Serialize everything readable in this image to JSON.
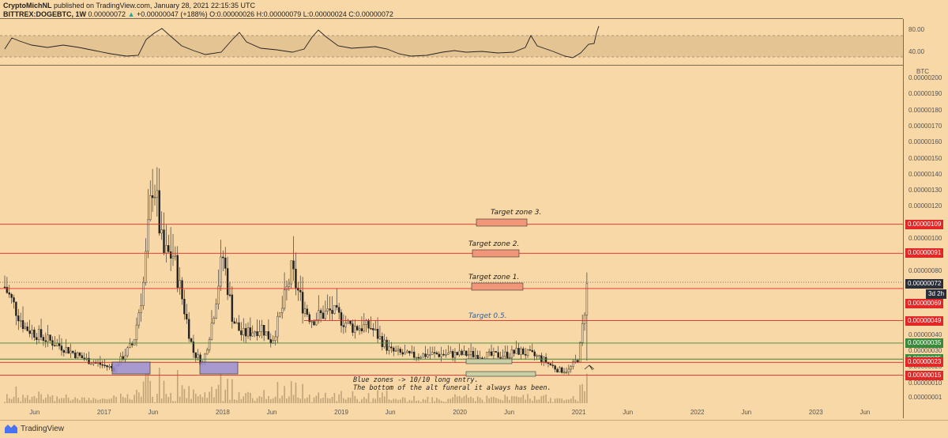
{
  "header": {
    "line1_author": "CryptoMichNL",
    "line1_rest": "published on TradingView.com, January 28, 2021 22:15:35 UTC",
    "line2_symbol": "BITTREX:DOGEBTC, 1W",
    "line2_close": "0.00000072",
    "line2_change": "+0.00000047 (+188%)",
    "line2_ohlc": "O:0.00000026 H:0.00000079 L:0.00000024 C:0.00000072"
  },
  "rsi_panel": {
    "ticks": [
      "80.00",
      "40.00"
    ]
  },
  "price_axis": {
    "unit": "BTC",
    "ticks": [
      "0.00000200",
      "0.00000190",
      "0.00000180",
      "0.00000170",
      "0.00000160",
      "0.00000150",
      "0.00000140",
      "0.00000130",
      "0.00000120",
      "0.00000110",
      "0.00000100",
      "0.00000090",
      "0.00000080",
      "0.00000070",
      "0.00000060",
      "0.00000050",
      "0.00000040",
      "0.00000030",
      "0.00000020",
      "0.00000010",
      "0.00000001"
    ]
  },
  "time_axis": {
    "ticks": [
      "Jun",
      "2017",
      "Jun",
      "2018",
      "Jun",
      "2019",
      "Jun",
      "2020",
      "Jun",
      "2021",
      "Jun",
      "2022",
      "Jun",
      "2023",
      "Jun"
    ]
  },
  "price_labels": [
    {
      "text": "0.00000109",
      "color": "#e32626"
    },
    {
      "text": "0.00000091",
      "color": "#e32626"
    },
    {
      "text": "0.00000072",
      "color": "#2a2e39"
    },
    {
      "text": "3d 2h",
      "color": "#2a2e39"
    },
    {
      "text": "0.00000069",
      "color": "#e32626"
    },
    {
      "text": "0.00000049",
      "color": "#e32626"
    },
    {
      "text": "0.00000035",
      "color": "#3b8a3b"
    },
    {
      "text": "0.00000025",
      "color": "#3b8a3b"
    },
    {
      "text": "0.00000023",
      "color": "#e32626"
    },
    {
      "text": "0.00000015",
      "color": "#e32626"
    }
  ],
  "annotations": {
    "target3": "Target zone 3.",
    "target2": "Target zone 2.",
    "target1": "Target zone 1.",
    "target05": "Target 0.5.",
    "note1": "Blue zones -> 10/10 long entry.",
    "note2": "The bottom of the alt funeral it always has been."
  },
  "footer": {
    "brand": "TradingView"
  },
  "chart_data": {
    "type": "candlestick",
    "symbol": "BITTREX:DOGEBTC",
    "interval": "1W",
    "y_unit": "BTC",
    "ylim": [
      1e-08,
      2e-06
    ],
    "x_range": [
      "2016-03",
      "2023-08"
    ],
    "last": {
      "open": 2.6e-07,
      "high": 7.9e-07,
      "low": 2.4e-07,
      "close": 7.2e-07,
      "change": 4.7e-07,
      "change_pct": 188
    },
    "horizontal_levels": [
      {
        "value": 1.09e-06,
        "color": "#e32626",
        "label": "Target zone 3."
      },
      {
        "value": 9.1e-07,
        "color": "#e32626",
        "label": "Target zone 2."
      },
      {
        "value": 6.9e-07,
        "color": "#e32626",
        "label": "Target zone 1."
      },
      {
        "value": 4.9e-07,
        "color": "#e32626",
        "label": "Target 0.5."
      },
      {
        "value": 3.5e-07,
        "color": "#3b8a3b"
      },
      {
        "value": 2.5e-07,
        "color": "#3b8a3b"
      },
      {
        "value": 2.3e-07,
        "color": "#e32626"
      },
      {
        "value": 1.5e-07,
        "color": "#e32626"
      }
    ],
    "close_series": [
      {
        "t": "2016-03",
        "c": 7e-07
      },
      {
        "t": "2016-05",
        "c": 4.5e-07
      },
      {
        "t": "2016-07",
        "c": 3.8e-07
      },
      {
        "t": "2016-09",
        "c": 3.2e-07
      },
      {
        "t": "2016-11",
        "c": 2.5e-07
      },
      {
        "t": "2017-01",
        "c": 2.1e-07
      },
      {
        "t": "2017-02",
        "c": 1.9e-07
      },
      {
        "t": "2017-04",
        "c": 3.5e-07
      },
      {
        "t": "2017-05",
        "c": 7e-07
      },
      {
        "t": "2017-06",
        "c": 1.4e-06
      },
      {
        "t": "2017-07",
        "c": 9e-07
      },
      {
        "t": "2017-08",
        "c": 9e-07
      },
      {
        "t": "2017-09",
        "c": 6e-07
      },
      {
        "t": "2017-10",
        "c": 3e-07
      },
      {
        "t": "2017-11",
        "c": 2.2e-07
      },
      {
        "t": "2017-12",
        "c": 5e-07
      },
      {
        "t": "2018-01",
        "c": 9e-07
      },
      {
        "t": "2018-02",
        "c": 5e-07
      },
      {
        "t": "2018-03",
        "c": 4e-07
      },
      {
        "t": "2018-05",
        "c": 4.5e-07
      },
      {
        "t": "2018-06",
        "c": 3.6e-07
      },
      {
        "t": "2018-07",
        "c": 5.5e-07
      },
      {
        "t": "2018-08",
        "c": 8e-07
      },
      {
        "t": "2018-09",
        "c": 6e-07
      },
      {
        "t": "2018-10",
        "c": 5e-07
      },
      {
        "t": "2018-12",
        "c": 5.5e-07
      },
      {
        "t": "2019-02",
        "c": 4.5e-07
      },
      {
        "t": "2019-04",
        "c": 4.5e-07
      },
      {
        "t": "2019-06",
        "c": 3e-07
      },
      {
        "t": "2019-08",
        "c": 2.7e-07
      },
      {
        "t": "2019-10",
        "c": 2.8e-07
      },
      {
        "t": "2019-12",
        "c": 2.8e-07
      },
      {
        "t": "2020-02",
        "c": 2.8e-07
      },
      {
        "t": "2020-04",
        "c": 2.7e-07
      },
      {
        "t": "2020-06",
        "c": 2.8e-07
      },
      {
        "t": "2020-07",
        "c": 3e-07
      },
      {
        "t": "2020-09",
        "c": 2.6e-07
      },
      {
        "t": "2020-11",
        "c": 1.8e-07
      },
      {
        "t": "2020-12",
        "c": 1.8e-07
      },
      {
        "t": "2021-01",
        "c": 2.6e-07
      },
      {
        "t": "2021-01-28",
        "c": 7.2e-07
      }
    ]
  }
}
